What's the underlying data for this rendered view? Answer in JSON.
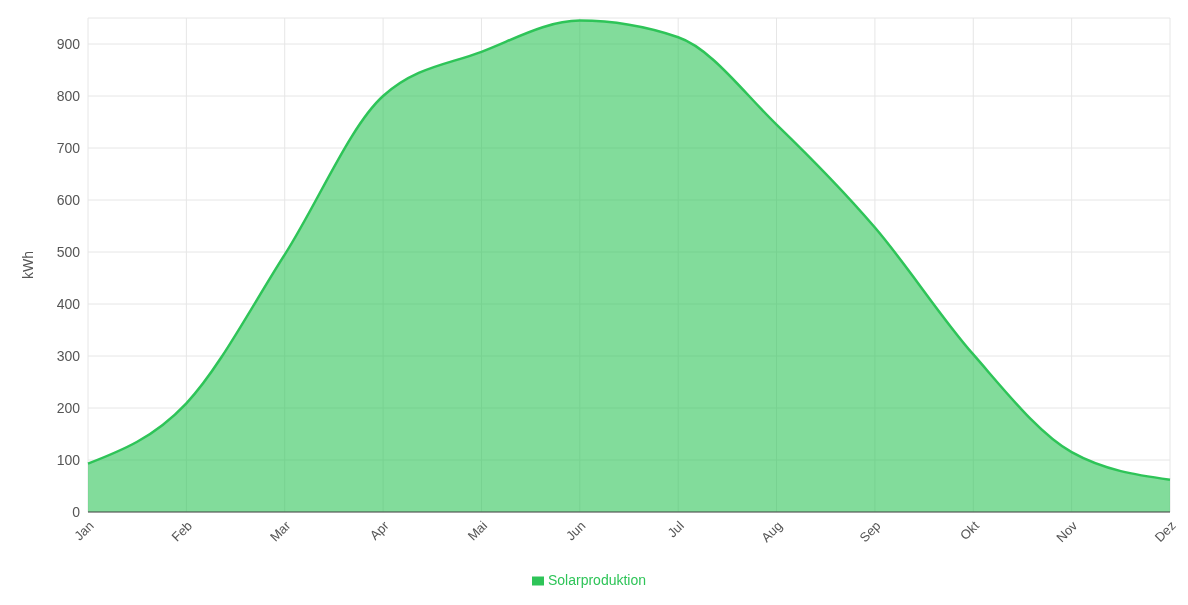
{
  "chart_data": {
    "type": "area",
    "ylabel": "kWh",
    "categories": [
      "Jan",
      "Feb",
      "Mar",
      "Apr",
      "Mai",
      "Jun",
      "Jul",
      "Aug",
      "Sep",
      "Okt",
      "Nov",
      "Dez"
    ],
    "series": [
      {
        "name": "Solarproduktion",
        "color": "#2ec458",
        "values": [
          93,
          209,
          495,
          800,
          885,
          945,
          913,
          745,
          547,
          303,
          115,
          62
        ]
      }
    ],
    "ylim": [
      0,
      950
    ],
    "yticks": [
      0,
      100,
      200,
      300,
      400,
      500,
      600,
      700,
      800,
      900
    ],
    "grid": true,
    "legend": "bottom"
  }
}
